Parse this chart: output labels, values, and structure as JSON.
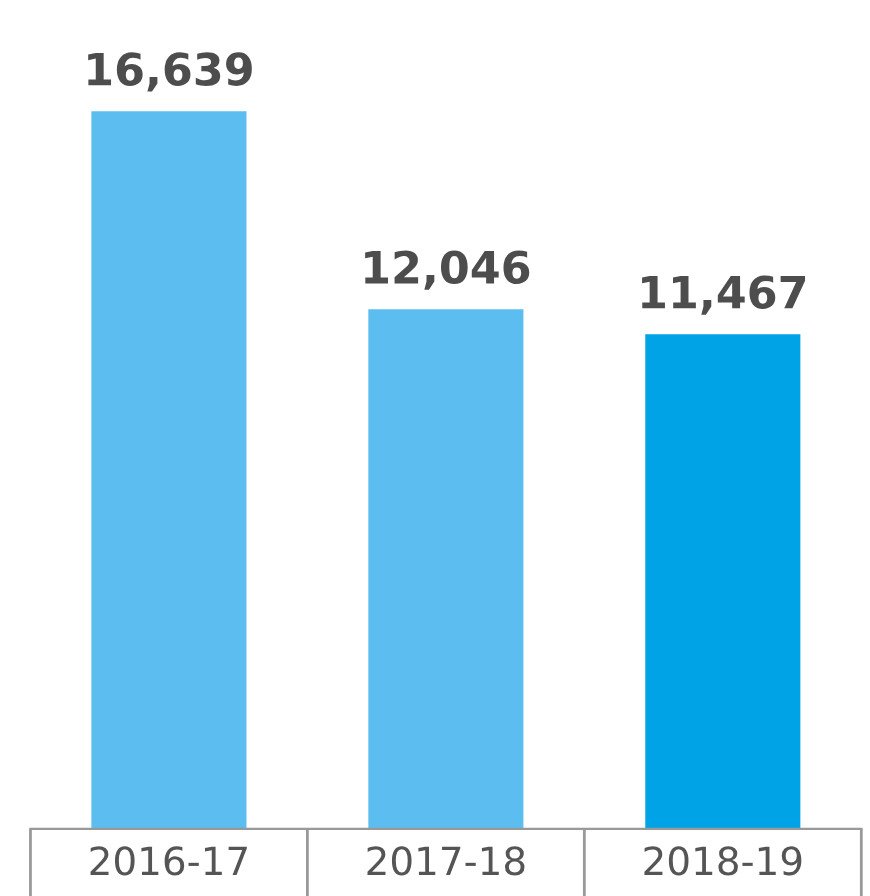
{
  "chart_data": {
    "type": "bar",
    "categories": [
      "2016-17",
      "2017-18",
      "2018-19"
    ],
    "values": [
      16639,
      12046,
      11467
    ],
    "colors": [
      "#5bbdf0",
      "#5bbdf0",
      "#00a3e6"
    ],
    "value_labels": [
      "16,639",
      "12,046",
      "11,467"
    ],
    "grid": false,
    "legend": false
  }
}
